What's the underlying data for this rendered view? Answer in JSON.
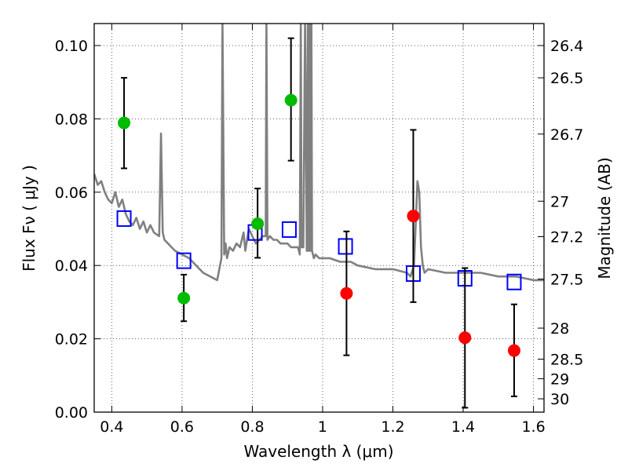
{
  "chart_data": {
    "type": "scatter",
    "title": "",
    "xlabel": "Wavelength  λ (μm)",
    "ylabel": "Flux  Fν  ( μJy )",
    "ylabel_right": "Magnitude (AB)",
    "xlim": [
      0.35,
      1.63
    ],
    "ylim": [
      0.0,
      0.106
    ],
    "grid": true,
    "x_ticks": [
      {
        "value": 0.4,
        "label": "0.4"
      },
      {
        "value": 0.6,
        "label": "0.6"
      },
      {
        "value": 0.8,
        "label": "0.8"
      },
      {
        "value": 1.0,
        "label": "1"
      },
      {
        "value": 1.2,
        "label": "1.2"
      },
      {
        "value": 1.4,
        "label": "1.4"
      },
      {
        "value": 1.6,
        "label": "1.6"
      }
    ],
    "y_ticks": [
      {
        "value": 0.0,
        "label": "0.00"
      },
      {
        "value": 0.02,
        "label": "0.02"
      },
      {
        "value": 0.04,
        "label": "0.04"
      },
      {
        "value": 0.06,
        "label": "0.06"
      },
      {
        "value": 0.08,
        "label": "0.08"
      },
      {
        "value": 0.1,
        "label": "0.10"
      }
    ],
    "y_right_ticks": [
      {
        "value": 26.4,
        "label": "26.4"
      },
      {
        "value": 26.5,
        "label": "26.5"
      },
      {
        "value": 26.7,
        "label": "26.7"
      },
      {
        "value": 27.0,
        "label": "27"
      },
      {
        "value": 27.2,
        "label": "27.2"
      },
      {
        "value": 27.5,
        "label": "27.5"
      },
      {
        "value": 28.0,
        "label": "28"
      },
      {
        "value": 28.5,
        "label": "28.5"
      },
      {
        "value": 29.0,
        "label": "29"
      },
      {
        "value": 30.0,
        "label": "30"
      }
    ],
    "series": [
      {
        "type": "line",
        "color": "#808080",
        "x": [
          0.35,
          0.36,
          0.37,
          0.38,
          0.39,
          0.4,
          0.41,
          0.42,
          0.43,
          0.44,
          0.45,
          0.46,
          0.47,
          0.48,
          0.49,
          0.5,
          0.51,
          0.52,
          0.535,
          0.54,
          0.545,
          0.55,
          0.56,
          0.57,
          0.58,
          0.6,
          0.62,
          0.64,
          0.66,
          0.68,
          0.7,
          0.712,
          0.715,
          0.72,
          0.724,
          0.728,
          0.735,
          0.745,
          0.755,
          0.765,
          0.775,
          0.78,
          0.785,
          0.79,
          0.8,
          0.81,
          0.82,
          0.83,
          0.838,
          0.84,
          0.843,
          0.85,
          0.86,
          0.87,
          0.88,
          0.89,
          0.9,
          0.91,
          0.92,
          0.93,
          0.935,
          0.938,
          0.94,
          0.945,
          0.95,
          0.955,
          0.958,
          0.96,
          0.963,
          0.965,
          0.968,
          0.97,
          0.975,
          0.98,
          0.99,
          1.0,
          1.02,
          1.05,
          1.08,
          1.1,
          1.15,
          1.2,
          1.24,
          1.25,
          1.26,
          1.27,
          1.275,
          1.28,
          1.285,
          1.29,
          1.3,
          1.35,
          1.4,
          1.45,
          1.5,
          1.55,
          1.6,
          1.63
        ],
        "y": [
          0.065,
          0.062,
          0.063,
          0.06,
          0.058,
          0.057,
          0.06,
          0.056,
          0.058,
          0.054,
          0.052,
          0.051,
          0.053,
          0.05,
          0.052,
          0.049,
          0.051,
          0.049,
          0.048,
          0.076,
          0.049,
          0.047,
          0.046,
          0.045,
          0.044,
          0.043,
          0.042,
          0.04,
          0.038,
          0.037,
          0.036,
          0.042,
          0.107,
          0.043,
          0.046,
          0.042,
          0.045,
          0.044,
          0.046,
          0.045,
          0.049,
          0.044,
          0.047,
          0.05,
          0.048,
          0.046,
          0.047,
          0.048,
          0.048,
          0.107,
          0.047,
          0.048,
          0.047,
          0.047,
          0.046,
          0.046,
          0.046,
          0.045,
          0.045,
          0.045,
          0.043,
          0.107,
          0.045,
          0.045,
          0.107,
          0.044,
          0.107,
          0.044,
          0.107,
          0.044,
          0.107,
          0.044,
          0.042,
          0.043,
          0.042,
          0.042,
          0.042,
          0.041,
          0.041,
          0.04,
          0.039,
          0.039,
          0.038,
          0.037,
          0.04,
          0.063,
          0.06,
          0.045,
          0.04,
          0.038,
          0.039,
          0.038,
          0.038,
          0.038,
          0.037,
          0.037,
          0.036,
          0.036
        ]
      },
      {
        "type": "scatter",
        "marker": "square-open",
        "color": "#0000ff",
        "x": [
          0.435,
          0.605,
          0.808,
          0.905,
          1.065,
          1.258,
          1.405,
          1.545
        ],
        "y": [
          0.0528,
          0.0413,
          0.049,
          0.0498,
          0.0452,
          0.0378,
          0.0365,
          0.0355
        ]
      },
      {
        "type": "scatter",
        "marker": "circle",
        "color": "#00bb00",
        "x": [
          0.435,
          0.605,
          0.815,
          0.91
        ],
        "y": [
          0.0789,
          0.0311,
          0.0514,
          0.0851
        ],
        "yerr_low": [
          0.0665,
          0.0248,
          0.0421,
          0.0686
        ],
        "yerr_high": [
          0.0912,
          0.0375,
          0.061,
          0.102
        ]
      },
      {
        "type": "scatter",
        "marker": "circle",
        "color": "#ff0000",
        "x": [
          1.068,
          1.258,
          1.405,
          1.545
        ],
        "y": [
          0.0324,
          0.0535,
          0.0203,
          0.0168
        ],
        "yerr_low": [
          0.0155,
          0.03,
          0.0012,
          0.0043
        ],
        "yerr_high": [
          0.0493,
          0.077,
          0.0393,
          0.0294
        ]
      }
    ]
  }
}
